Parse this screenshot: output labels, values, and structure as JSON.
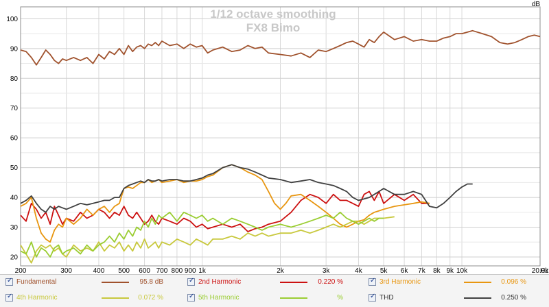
{
  "chart_data": {
    "type": "line",
    "title": "1/12 octave smoothing",
    "subtitle": "FX8 Bimo",
    "ylabel": "dB",
    "xlabel": "",
    "x_scale": "log",
    "xlim": [
      200,
      20000
    ],
    "ylim": [
      17,
      104
    ],
    "x_unit_label": "Hz",
    "grid": true,
    "x_ticks": [
      {
        "v": 200,
        "label": "200"
      },
      {
        "v": 300,
        "label": "300"
      },
      {
        "v": 400,
        "label": "400"
      },
      {
        "v": 500,
        "label": "500"
      },
      {
        "v": 600,
        "label": "600"
      },
      {
        "v": 700,
        "label": "700"
      },
      {
        "v": 800,
        "label": "800"
      },
      {
        "v": 900,
        "label": "900"
      },
      {
        "v": 1000,
        "label": "1k"
      },
      {
        "v": 2000,
        "label": "2k"
      },
      {
        "v": 3000,
        "label": "3k"
      },
      {
        "v": 4000,
        "label": "4k"
      },
      {
        "v": 5000,
        "label": "5k"
      },
      {
        "v": 6000,
        "label": "6k"
      },
      {
        "v": 7000,
        "label": "7k"
      },
      {
        "v": 8000,
        "label": "8k"
      },
      {
        "v": 9000,
        "label": "9k"
      },
      {
        "v": 10000,
        "label": "10k"
      },
      {
        "v": 20000,
        "label": "20.0k"
      }
    ],
    "y_ticks": [
      20,
      30,
      40,
      50,
      60,
      70,
      80,
      90,
      100
    ],
    "series": [
      {
        "name": "Fundamental",
        "color": "#a0522d",
        "x": [
          200,
          210,
          220,
          230,
          240,
          250,
          260,
          270,
          280,
          290,
          300,
          320,
          340,
          360,
          380,
          400,
          420,
          440,
          460,
          480,
          500,
          520,
          540,
          560,
          580,
          600,
          620,
          640,
          660,
          680,
          700,
          750,
          800,
          850,
          900,
          950,
          1000,
          1050,
          1100,
          1200,
          1300,
          1400,
          1500,
          1600,
          1700,
          1800,
          2000,
          2200,
          2400,
          2600,
          2800,
          3000,
          3200,
          3400,
          3600,
          3800,
          4000,
          4200,
          4400,
          4600,
          4800,
          5000,
          5500,
          6000,
          6500,
          7000,
          7500,
          8000,
          8500,
          9000,
          9500,
          10000,
          11000,
          12000,
          13000,
          14000,
          15000,
          16000,
          17000,
          18000,
          19000,
          20000
        ],
        "y": [
          89.5,
          89,
          87,
          84.5,
          87,
          89.5,
          88,
          86,
          85,
          86.5,
          86,
          87,
          86,
          87,
          85,
          88,
          86.5,
          89,
          88,
          90,
          88,
          91,
          89,
          90.5,
          91,
          90,
          91.5,
          91,
          92,
          91,
          92.5,
          91,
          91.5,
          90,
          91.5,
          90.5,
          91,
          88.5,
          89.5,
          90.5,
          89,
          89.5,
          91,
          90,
          90.5,
          88.5,
          88,
          87.5,
          88.5,
          87,
          89.5,
          89,
          90,
          91,
          92,
          92.5,
          91.5,
          90.5,
          93,
          92,
          94,
          95.5,
          93,
          94,
          92.5,
          93,
          92.5,
          92.5,
          93.5,
          94,
          95,
          95,
          96,
          95,
          94,
          92,
          91.5,
          92,
          93,
          94,
          94.5,
          94
        ]
      },
      {
        "name": "2nd Harmonic",
        "color": "#cc1111",
        "x": [
          200,
          210,
          220,
          230,
          240,
          250,
          260,
          270,
          280,
          290,
          300,
          320,
          340,
          360,
          380,
          400,
          420,
          440,
          460,
          480,
          500,
          520,
          540,
          560,
          580,
          600,
          620,
          640,
          660,
          680,
          700,
          750,
          800,
          850,
          900,
          950,
          1000,
          1050,
          1100,
          1200,
          1300,
          1400,
          1500,
          1600,
          1700,
          1800,
          2000,
          2200,
          2400,
          2600,
          2800,
          3000,
          3200,
          3400,
          3600,
          3800,
          4000,
          4200,
          4400,
          4600,
          4800,
          5000,
          5500,
          6000,
          6500,
          7000,
          7500
        ],
        "y": [
          34,
          32,
          38,
          36,
          33,
          35,
          31,
          37,
          34,
          31,
          33,
          32,
          35,
          33,
          34,
          36,
          35,
          33,
          35,
          34,
          37,
          34,
          33,
          35,
          33,
          31,
          32,
          34,
          32,
          31,
          33,
          32,
          31,
          33,
          32,
          30,
          31,
          29.5,
          30,
          31,
          30,
          31,
          28.5,
          29.5,
          30,
          31,
          32,
          35,
          39,
          41,
          40,
          38,
          41,
          39,
          39,
          38,
          37,
          41,
          42,
          39,
          42,
          38,
          41,
          39,
          41,
          38,
          38
        ]
      },
      {
        "name": "3rd Harmonic",
        "color": "#e89610",
        "x": [
          200,
          210,
          220,
          230,
          240,
          250,
          260,
          270,
          280,
          290,
          300,
          320,
          340,
          360,
          380,
          400,
          420,
          440,
          460,
          480,
          500,
          520,
          540,
          560,
          580,
          600,
          620,
          640,
          660,
          680,
          700,
          750,
          800,
          850,
          900,
          950,
          1000,
          1050,
          1100,
          1200,
          1300,
          1400,
          1500,
          1600,
          1700,
          1800,
          1900,
          2000,
          2100,
          2200,
          2400,
          2600,
          2800,
          3000,
          3200,
          3400,
          3600,
          3800,
          4000,
          4200,
          4400,
          4600,
          4800,
          5000,
          5500,
          6000,
          6500,
          7000,
          7500
        ],
        "y": [
          37,
          38,
          40,
          33,
          28,
          26,
          25,
          29,
          31,
          30,
          33,
          31,
          33,
          36,
          34,
          36,
          37,
          35,
          37,
          38,
          43,
          43.5,
          43,
          44,
          45,
          45,
          46,
          45,
          45.5,
          46,
          45,
          45.5,
          46,
          45,
          45.5,
          45.5,
          46,
          47,
          47.5,
          50,
          51,
          50,
          48.5,
          47.5,
          46,
          42,
          38,
          36,
          38,
          40.5,
          41,
          39,
          37,
          35,
          33,
          31,
          30,
          31,
          32,
          32.5,
          34,
          35,
          35.5,
          36,
          37,
          37.5,
          38,
          38.5,
          38
        ]
      },
      {
        "name": "4th Harmonic",
        "color": "#c8c83c",
        "x": [
          200,
          210,
          220,
          230,
          240,
          250,
          260,
          270,
          280,
          290,
          300,
          320,
          340,
          360,
          380,
          400,
          420,
          440,
          460,
          480,
          500,
          520,
          540,
          560,
          580,
          600,
          620,
          640,
          660,
          680,
          700,
          750,
          800,
          850,
          900,
          950,
          1000,
          1050,
          1100,
          1200,
          1300,
          1400,
          1500,
          1600,
          1700,
          1800,
          2000,
          2200,
          2400,
          2600,
          2800,
          3000,
          3200,
          3400,
          3600,
          3800,
          4000,
          4200,
          4400,
          4600,
          4800,
          5000,
          5500
        ],
        "y": [
          24,
          21,
          18,
          22,
          24,
          23,
          24,
          22,
          23,
          21,
          20,
          24,
          22,
          23,
          22,
          25,
          22,
          24,
          23,
          25,
          22,
          24,
          22,
          25,
          23,
          26,
          23,
          24,
          25,
          23,
          25,
          24,
          26,
          25,
          24,
          26,
          25,
          24,
          26,
          26,
          27,
          26,
          28,
          27,
          28,
          27,
          28,
          28,
          29,
          28,
          29,
          30,
          31,
          30,
          31,
          32,
          32,
          31,
          32,
          33,
          33,
          33,
          33.5
        ]
      },
      {
        "name": "5th Harmonic",
        "color": "#9acd32",
        "x": [
          200,
          210,
          220,
          230,
          240,
          250,
          260,
          270,
          280,
          290,
          300,
          320,
          340,
          360,
          380,
          400,
          420,
          440,
          460,
          480,
          500,
          520,
          540,
          560,
          580,
          600,
          620,
          640,
          660,
          680,
          700,
          750,
          800,
          850,
          900,
          950,
          1000,
          1050,
          1100,
          1200,
          1300,
          1400,
          1500,
          1600,
          1700,
          1800,
          2000,
          2200,
          2400,
          2600,
          2800,
          3000,
          3200,
          3400,
          3600,
          3800,
          4000,
          4200,
          4400,
          4600,
          4800,
          5000
        ],
        "y": [
          22,
          21,
          25,
          20,
          23,
          22,
          20,
          23,
          24,
          21,
          22,
          23,
          21,
          24,
          22,
          24,
          25,
          27,
          25,
          28,
          26,
          29,
          27,
          30,
          29,
          32,
          30,
          33,
          31,
          34,
          33,
          35,
          32,
          35,
          34,
          33,
          34,
          32,
          33,
          31,
          33,
          32,
          31,
          30,
          29,
          30,
          31,
          30,
          31,
          32,
          33,
          34,
          33,
          35,
          33,
          32,
          31,
          32,
          33,
          32,
          33,
          33
        ]
      },
      {
        "name": "THD",
        "color": "#404040",
        "x": [
          200,
          210,
          220,
          230,
          240,
          250,
          260,
          270,
          280,
          290,
          300,
          320,
          340,
          360,
          380,
          400,
          420,
          440,
          460,
          480,
          500,
          520,
          540,
          560,
          580,
          600,
          620,
          640,
          660,
          680,
          700,
          750,
          800,
          850,
          900,
          950,
          1000,
          1050,
          1100,
          1200,
          1300,
          1400,
          1500,
          1600,
          1700,
          1800,
          2000,
          2200,
          2400,
          2600,
          2800,
          3000,
          3200,
          3400,
          3600,
          3800,
          4000,
          4200,
          4400,
          4600,
          4800,
          5000,
          5500,
          6000,
          6500,
          7000,
          7500,
          8000,
          8500,
          9000,
          9500,
          10000,
          10500,
          11000
        ],
        "y": [
          38,
          39,
          40.5,
          38,
          36,
          35,
          37,
          36,
          37,
          36.5,
          36,
          37,
          38,
          37.5,
          38,
          38.5,
          39,
          39,
          40,
          40,
          43,
          44,
          44.5,
          45,
          45.5,
          45,
          46,
          45.5,
          45.5,
          46,
          45.5,
          46,
          46,
          45.5,
          45.5,
          46,
          46.5,
          47.5,
          48,
          50,
          51,
          50,
          49.5,
          48.5,
          47.5,
          46.5,
          46,
          45,
          45.5,
          46,
          45,
          44.5,
          44,
          43,
          42,
          40,
          39,
          39.5,
          40,
          41,
          42,
          43,
          41,
          41,
          42,
          41,
          37,
          36.5,
          38,
          40,
          42,
          43.5,
          44.5,
          44.5
        ]
      }
    ]
  },
  "legend": {
    "items": [
      {
        "name": "Fundamental",
        "value": "95.8 dB",
        "color": "#a0522d"
      },
      {
        "name": "2nd Harmonic",
        "value": "0.220 %",
        "color": "#cc1111"
      },
      {
        "name": "3rd Harmonic",
        "value": "0.096 %",
        "color": "#e89610"
      },
      {
        "name": "4th Harmonic",
        "value": "0.072 %",
        "color": "#c8c83c"
      },
      {
        "name": "5th Harmonic",
        "value": "%",
        "color": "#9acd32"
      },
      {
        "name": "THD",
        "value": "0.250 %",
        "color": "#404040"
      }
    ]
  }
}
